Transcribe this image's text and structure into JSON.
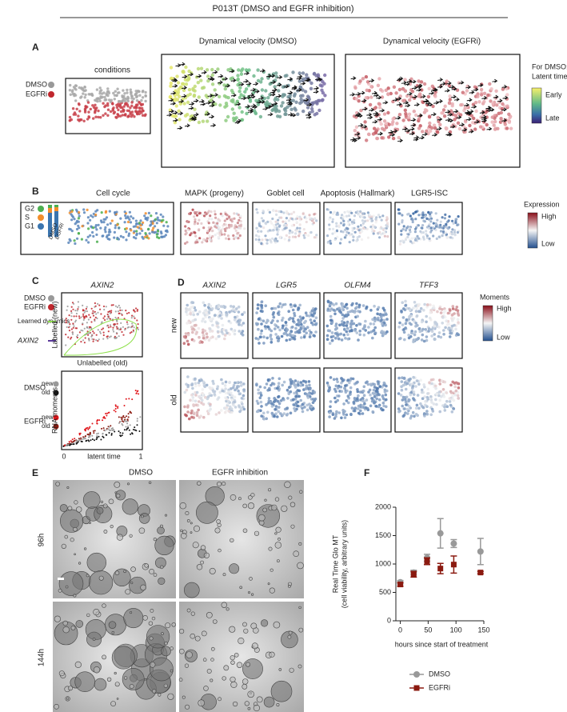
{
  "title": "P013T (DMSO and EGFR inhibition)",
  "panel_a": {
    "label": "A",
    "conditions_title": "conditions",
    "legend": [
      "DMSO",
      "EGFRi"
    ],
    "velocity_titles": [
      "Dynamical velocity (DMSO)",
      "Dynamical velocity (EGFRi)"
    ],
    "colorbar_title": [
      "For DMSO:",
      "Latent time"
    ],
    "colorbar_labels": [
      "Early",
      "Late"
    ]
  },
  "panel_b": {
    "label": "B",
    "titles": [
      "Cell cycle",
      "MAPK (progeny)",
      "Goblet cell",
      "Apoptosis (Hallmark)",
      "LGR5-ISC"
    ],
    "phases": [
      "G2",
      "S",
      "G1"
    ],
    "bar_labels": [
      "DMSO",
      "EGFRi"
    ],
    "colorbar_title": "Expression",
    "colorbar_labels": [
      "High",
      "Low"
    ]
  },
  "panel_c": {
    "label": "C",
    "title": "AXIN2",
    "legend": [
      "DMSO",
      "EGFRi",
      "Learned dynamics",
      "AXIN2"
    ],
    "y_label": "Labelled (new)",
    "x_label": "Unlabelled (old)",
    "moments_legend": [
      {
        "group": "DMSO",
        "items": [
          "new",
          "old"
        ]
      },
      {
        "group": "EGFRi",
        "items": [
          "new",
          "old"
        ]
      }
    ],
    "moments_y_label": "RNA moments",
    "moments_x_label": "latent time",
    "moments_x_ticks": [
      "0",
      "1"
    ]
  },
  "panel_d": {
    "label": "D",
    "genes": [
      "AXIN2",
      "LGR5",
      "OLFM4",
      "TFF3"
    ],
    "rows": [
      "new",
      "old"
    ],
    "colorbar_title": "Moments",
    "colorbar_labels": [
      "High",
      "Low"
    ]
  },
  "panel_e": {
    "label": "E",
    "columns": [
      "DMSO",
      "EGFR inhibition"
    ],
    "rows": [
      "96h",
      "144h"
    ]
  },
  "panel_f": {
    "label": "F"
  },
  "chart_data": {
    "type": "scatter",
    "y_label": [
      "Real Time Glo MT",
      "(cell viability, arbitrary units)"
    ],
    "x_label": "hours since start of treatment",
    "x": [
      0,
      24,
      48,
      72,
      96,
      144
    ],
    "series": [
      {
        "name": "DMSO",
        "color": "#999999",
        "marker": "circle",
        "values": [
          680,
          850,
          1110,
          1540,
          1360,
          1220
        ],
        "errors": [
          30,
          40,
          60,
          260,
          70,
          230
        ]
      },
      {
        "name": "EGFRi",
        "color": "#8b1a10",
        "marker": "square",
        "values": [
          640,
          820,
          1050,
          920,
          990,
          850
        ],
        "errors": [
          30,
          50,
          60,
          90,
          150,
          20
        ]
      }
    ],
    "xlim": [
      -8,
      150
    ],
    "ylim": [
      0,
      2000
    ],
    "xticks": [
      0,
      50,
      100,
      150
    ],
    "yticks": [
      0,
      500,
      1000,
      1500,
      2000
    ]
  }
}
